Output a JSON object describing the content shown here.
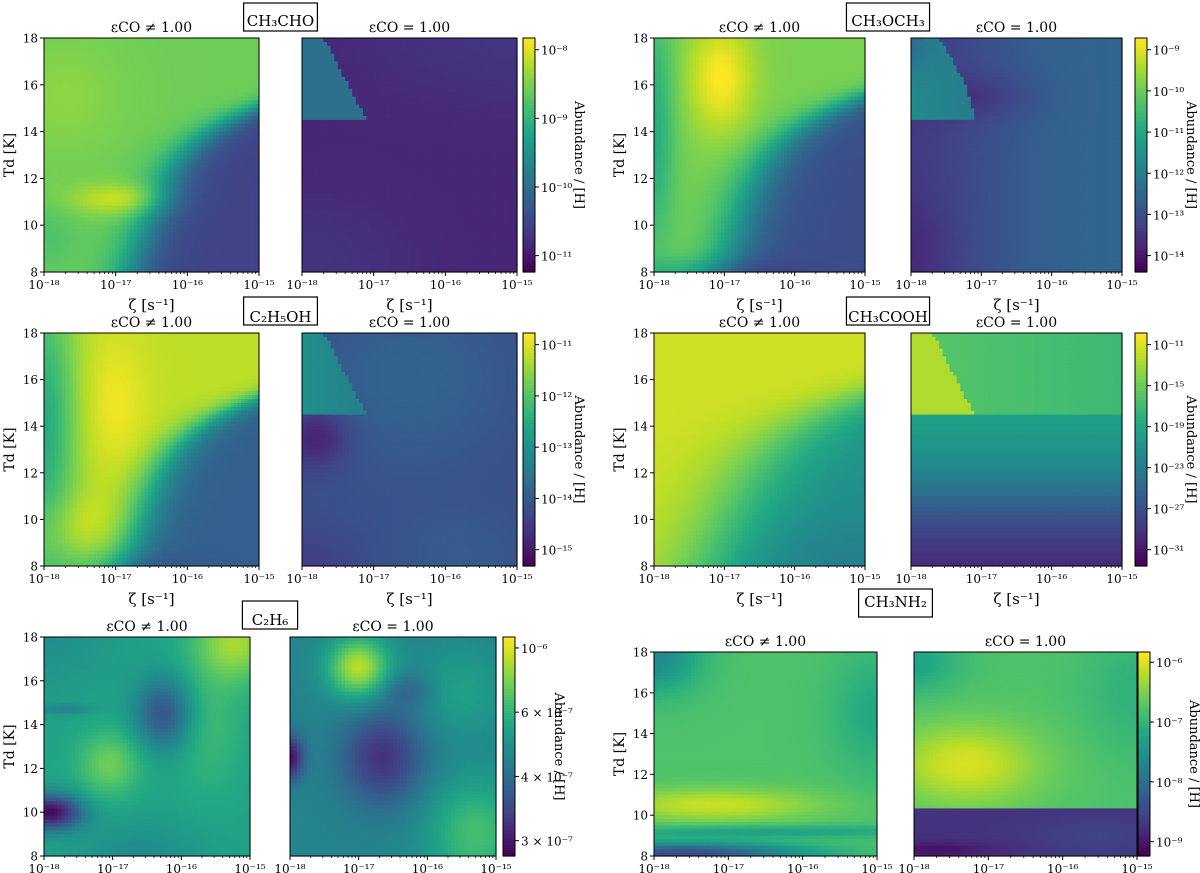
{
  "figure": {
    "rows": [
      {
        "panels": [
          {
            "species": "CH₃CHO",
            "ticks": [
              "10⁻⁸",
              "10⁻⁹",
              "10⁻¹⁰",
              "10⁻¹¹"
            ],
            "maps": [
              "ch3cho_vary",
              "ch3cho_fixed"
            ]
          },
          {
            "species": "CH₃OCH₃",
            "ticks": [
              "10⁻⁹",
              "10⁻¹⁰",
              "10⁻¹¹",
              "10⁻¹²",
              "10⁻¹³",
              "10⁻¹⁴"
            ],
            "maps": [
              "dme_vary",
              "dme_fixed"
            ]
          }
        ]
      },
      {
        "panels": [
          {
            "species": "C₂H₅OH",
            "ticks": [
              "10⁻¹¹",
              "10⁻¹²",
              "10⁻¹³",
              "10⁻¹⁴",
              "10⁻¹⁵"
            ],
            "maps": [
              "etoh_vary",
              "etoh_fixed"
            ]
          },
          {
            "species": "CH₃COOH",
            "ticks": [
              "10⁻¹¹",
              "10⁻¹⁵",
              "10⁻¹⁹",
              "10⁻²³",
              "10⁻²⁷",
              "10⁻³¹"
            ],
            "maps": [
              "acetic_vary",
              "acetic_fixed"
            ]
          }
        ]
      },
      {
        "panels": [
          {
            "species": "C₂H₆",
            "ticks": [
              "10⁻⁶",
              "6 × 10⁻⁷",
              "4 × 10⁻⁷",
              "3 × 10⁻⁷"
            ],
            "maps": [
              "c2h6_vary",
              "c2h6_fixed"
            ]
          },
          {
            "species": "CH₃NH₂",
            "ticks": [
              "10⁻⁶",
              "10⁻⁷",
              "10⁻⁸",
              "10⁻⁹"
            ],
            "maps": [
              "ch3nh2_vary",
              "ch3nh2_fixed"
            ]
          }
        ]
      }
    ],
    "subplot_titles": [
      "εCO ≠ 1.00",
      "εCO = 1.00"
    ],
    "y_ticks": [
      "8",
      "10",
      "12",
      "14",
      "16",
      "18"
    ],
    "x_ticks": [
      "10⁻¹⁸",
      "10⁻¹⁷",
      "10⁻¹⁶",
      "10⁻¹⁵"
    ],
    "x_label": "ζ [s⁻¹]",
    "y_label": "Td [K]",
    "colorbar_label": "Abundance / [H]",
    "colormap": "viridis"
  },
  "chart_data": {
    "type": "heatmap",
    "x_quantity": "ζ [s⁻¹]",
    "x_range": [
      1e-18,
      1e-15
    ],
    "x_scale": "log",
    "y_quantity": "Td [K]",
    "y_range": [
      8,
      18
    ],
    "colormap": "viridis",
    "panels": [
      {
        "species": "CH₃CHO",
        "colorbar_scale": "log",
        "colorbar_ticks": [
          1e-08,
          1e-09,
          1e-10,
          1e-11
        ]
      },
      {
        "species": "CH₃OCH₃",
        "colorbar_scale": "log",
        "colorbar_ticks": [
          1e-09,
          1e-10,
          1e-11,
          1e-12,
          1e-13,
          1e-14
        ]
      },
      {
        "species": "C₂H₅OH",
        "colorbar_scale": "log",
        "colorbar_ticks": [
          1e-11,
          1e-12,
          1e-13,
          1e-14,
          1e-15
        ]
      },
      {
        "species": "CH₃COOH",
        "colorbar_scale": "log",
        "colorbar_ticks": [
          1e-11,
          1e-15,
          1e-19,
          1e-23,
          1e-27,
          1e-31
        ]
      },
      {
        "species": "C₂H₆",
        "colorbar_scale": "log",
        "colorbar_ticks": [
          1e-06,
          6e-07,
          4e-07,
          3e-07
        ]
      },
      {
        "species": "CH₃NH₂",
        "colorbar_scale": "log",
        "colorbar_ticks": [
          1e-06,
          1e-07,
          1e-08,
          1e-09
        ]
      }
    ]
  }
}
